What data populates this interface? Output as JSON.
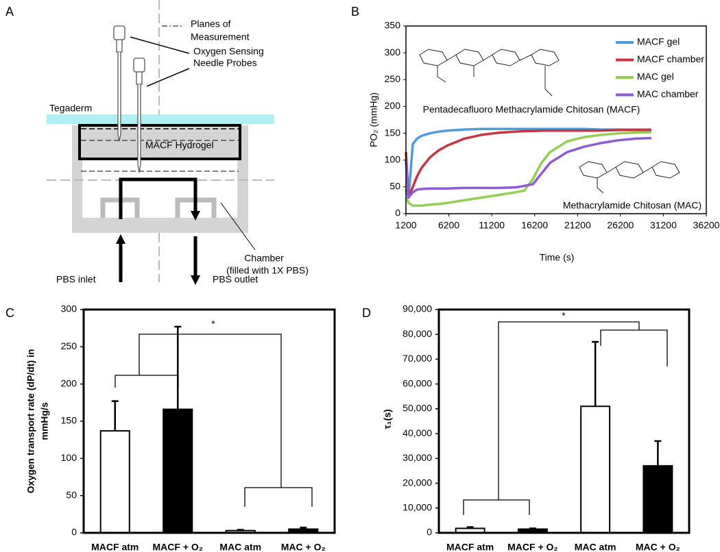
{
  "diagram": {
    "panel": "A",
    "planes": [
      "Planes of",
      "Measurement"
    ],
    "probes": [
      "Oxygen Sensing",
      "Needle Probes"
    ],
    "tegaderm": "Tegaderm",
    "hydrogel": "MACF Hydrogel",
    "chamber": [
      "Chamber",
      "(filled with 1X PBS)"
    ],
    "inlet": "PBS inlet",
    "outlet": "PBS outlet"
  },
  "chart_data": [
    {
      "type": "line",
      "panel": "B",
      "x_label": "Time (s)",
      "y_label": "PO₂ (mmHg)",
      "annotations": [
        "Pentadecafluoro Methacrylamide Chitosan (MACF)",
        "Methacrylamide Chitosan (MAC)"
      ],
      "x": [
        1200,
        1500,
        2000,
        2500,
        3000,
        4000,
        5000,
        6000,
        8000,
        10000,
        12000,
        14000,
        15000,
        16000,
        17000,
        18000,
        20000,
        22000,
        24000,
        26000,
        28000,
        29800
      ],
      "series": [
        {
          "name": "MACF gel",
          "color": "#4a9be0",
          "values": [
            45,
            30,
            130,
            140,
            145,
            150,
            153,
            155,
            157,
            158,
            158,
            158,
            158,
            158,
            158,
            158,
            158,
            158,
            157,
            157,
            157,
            157
          ]
        },
        {
          "name": "MACF chamber",
          "color": "#c8333f",
          "values": [
            115,
            30,
            50,
            70,
            85,
            105,
            118,
            127,
            140,
            147,
            151,
            153,
            154,
            154,
            155,
            155,
            155,
            155,
            155,
            156,
            156,
            156
          ]
        },
        {
          "name": "MAC gel",
          "color": "#92d050",
          "values": [
            30,
            20,
            15,
            15,
            15,
            17,
            18,
            20,
            25,
            30,
            35,
            40,
            43,
            65,
            95,
            115,
            135,
            143,
            147,
            150,
            151,
            152
          ]
        },
        {
          "name": "MAC chamber",
          "color": "#8e5ad8",
          "values": [
            100,
            30,
            40,
            45,
            46,
            47,
            47,
            47,
            48,
            48,
            48,
            49,
            52,
            55,
            75,
            95,
            115,
            125,
            132,
            137,
            140,
            141
          ]
        }
      ],
      "xlim": [
        1200,
        36200
      ],
      "xticks": [
        1200,
        6200,
        11200,
        16200,
        21200,
        26200,
        31200,
        36200
      ],
      "ylim": [
        0,
        350
      ],
      "yticks": [
        0,
        50,
        100,
        150,
        200,
        250,
        300,
        350
      ],
      "legend": "top-right"
    },
    {
      "type": "bar",
      "panel": "C",
      "y_label": [
        "Oxygen transport rate (dP/dt) in",
        "mmHg/s"
      ],
      "annotation": "*",
      "categories": [
        "MACF atm",
        "MACF + O₂",
        "MAC atm",
        "MAC + O₂"
      ],
      "values": [
        137,
        166,
        3,
        5
      ],
      "errors": [
        40,
        111,
        1,
        2
      ],
      "colors": [
        "#ffffff",
        "#000000",
        "#ffffff",
        "#000000"
      ],
      "ylim": [
        0,
        300
      ],
      "yticks": [
        0,
        50,
        100,
        150,
        200,
        250,
        300
      ]
    },
    {
      "type": "bar",
      "panel": "D",
      "y_label": "τ₁(s)",
      "annotation": "*",
      "categories": [
        "MACF atm",
        "MACF + O₂",
        "MAC atm",
        "MAC + O₂"
      ],
      "values": [
        1800,
        1500,
        51000,
        27000
      ],
      "errors": [
        500,
        300,
        26000,
        10000
      ],
      "colors": [
        "#ffffff",
        "#000000",
        "#ffffff",
        "#000000"
      ],
      "ylim": [
        0,
        90000
      ],
      "yticks": [
        0,
        {
          "value": 10000,
          "label": "10,000"
        },
        {
          "value": 20000,
          "label": "20,000"
        },
        {
          "value": 30000,
          "label": "30,000"
        },
        {
          "value": 40000,
          "label": "40,000"
        },
        {
          "value": 50000,
          "label": "50,000"
        },
        {
          "value": 60000,
          "label": "60,000"
        },
        {
          "value": 70000,
          "label": "70,000"
        },
        {
          "value": 80000,
          "label": "80,000"
        },
        {
          "value": 90000,
          "label": "90,000"
        }
      ]
    }
  ]
}
